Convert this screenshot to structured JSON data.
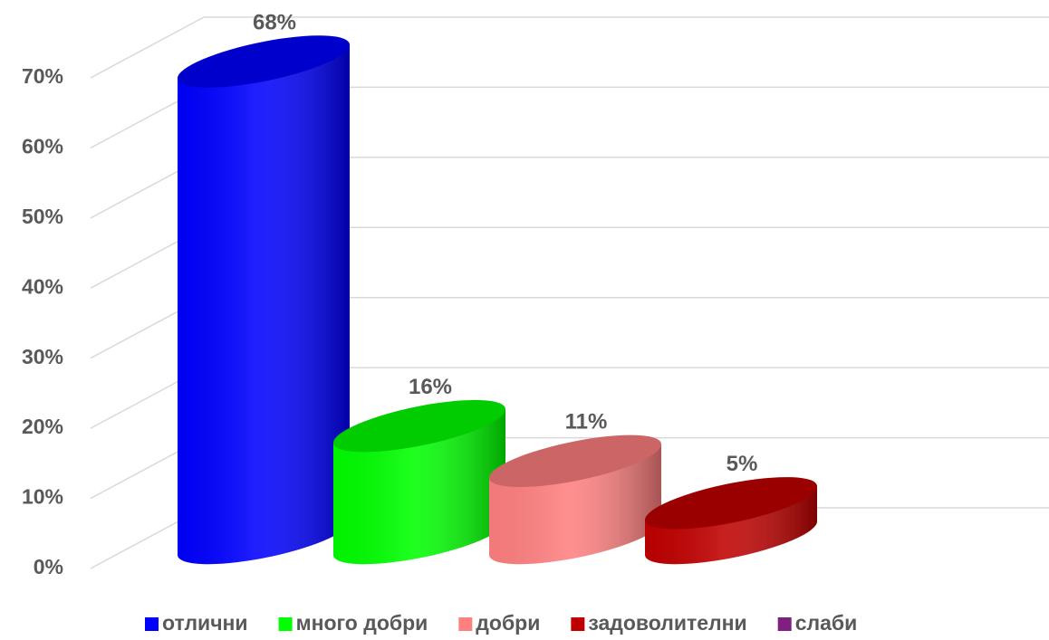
{
  "chart_data": {
    "type": "cylinder",
    "series": [
      {
        "name": "отлични",
        "color": "#0000ff",
        "values": [
          68
        ],
        "value_labels": [
          "68%"
        ]
      },
      {
        "name": "много добри",
        "color": "#00ff00",
        "values": [
          16
        ],
        "value_labels": [
          "16%"
        ]
      },
      {
        "name": "добри",
        "color": "#ff8080",
        "values": [
          11
        ],
        "value_labels": [
          "11%"
        ]
      },
      {
        "name": "задоволителни",
        "color": "#c00000",
        "values": [
          5
        ],
        "value_labels": [
          "5%"
        ]
      },
      {
        "name": "слаби",
        "color": "#7f1f7f",
        "values": [
          null
        ],
        "value_labels": [
          null
        ]
      }
    ],
    "ylim": [
      0,
      70
    ],
    "yticks": [
      {
        "value": 0,
        "label": "0%"
      },
      {
        "value": 10,
        "label": "10%"
      },
      {
        "value": 20,
        "label": "20%"
      },
      {
        "value": 30,
        "label": "30%"
      },
      {
        "value": 40,
        "label": "40%"
      },
      {
        "value": 50,
        "label": "50%"
      },
      {
        "value": 60,
        "label": "60%"
      },
      {
        "value": 70,
        "label": "70%"
      }
    ],
    "grid": true,
    "legend": "bottom"
  }
}
